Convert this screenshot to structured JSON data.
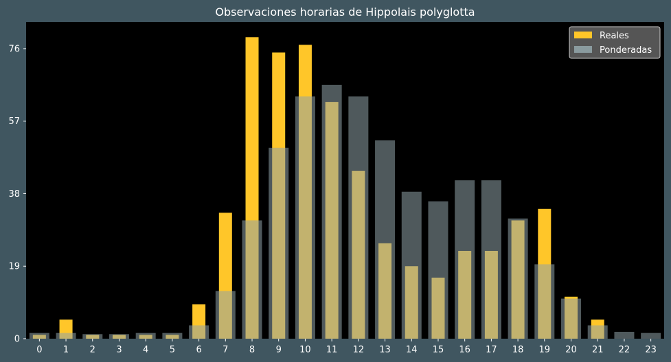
{
  "chart_data": {
    "type": "bar",
    "title": "Observaciones horarias de Hippolais polyglotta",
    "xlabel": "",
    "ylabel": "",
    "categories": [
      "0",
      "1",
      "2",
      "3",
      "4",
      "5",
      "6",
      "7",
      "8",
      "9",
      "10",
      "11",
      "12",
      "13",
      "14",
      "15",
      "16",
      "17",
      "18",
      "19",
      "20",
      "21",
      "22",
      "23"
    ],
    "series": [
      {
        "name": "Reales",
        "color": "#ffc629",
        "values": [
          1,
          5,
          1,
          1,
          1,
          1,
          9,
          33,
          79,
          75,
          77,
          62,
          44,
          25,
          19,
          16,
          23,
          23,
          31,
          34,
          11,
          5,
          0,
          0
        ]
      },
      {
        "name": "Ponderadas",
        "color": "#8fa3a8",
        "opacity": 0.55,
        "values": [
          1.5,
          1.5,
          1.2,
          1.2,
          1.5,
          1.5,
          3.5,
          12.5,
          31,
          50,
          63.5,
          66.5,
          63.5,
          52,
          38.5,
          36,
          41.5,
          41.5,
          31.5,
          19.5,
          10.5,
          3.5,
          1.8,
          1.5
        ]
      }
    ],
    "yticks": [
      0,
      19,
      38,
      57,
      76
    ],
    "ylim": [
      0,
      83
    ],
    "grid": false,
    "legend": "top-right",
    "background": "#000000",
    "figure_background": "#405660"
  }
}
